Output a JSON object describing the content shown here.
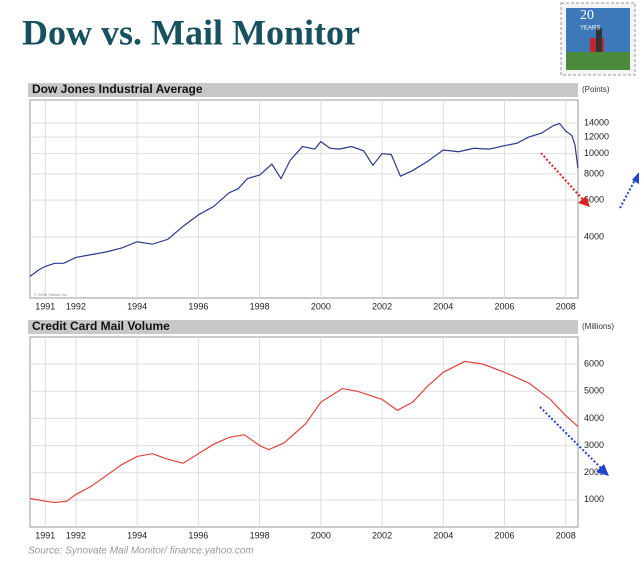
{
  "title": "Dow vs. Mail Monitor",
  "badge": {
    "number": "20",
    "label": "YEARS"
  },
  "source": "Source: Synovate Mail Monitor/ finance.yahoo.com",
  "chart_data": [
    {
      "type": "line",
      "title": "Dow Jones Industrial Average",
      "unit_label": "(Points)",
      "annotation": "© 2006 Yahoo! Inc.",
      "log_scale": true,
      "grid": true,
      "color": "#2b3a8c",
      "x": [
        1990.5,
        1990.8,
        1991,
        1991.3,
        1991.6,
        1992,
        1992.5,
        1993,
        1993.5,
        1994,
        1994.5,
        1995,
        1995.5,
        1996,
        1996.5,
        1997,
        1997.3,
        1997.6,
        1998,
        1998.4,
        1998.7,
        1999,
        1999.4,
        1999.8,
        2000,
        2000.3,
        2000.6,
        2001,
        2001.4,
        2001.7,
        2002,
        2002.3,
        2002.6,
        2003,
        2003.5,
        2004,
        2004.5,
        2005,
        2005.5,
        2006,
        2006.4,
        2006.8,
        2007.2,
        2007.6,
        2007.8,
        2008,
        2008.2,
        2008.3,
        2008.4
      ],
      "values": [
        2600,
        2800,
        2900,
        3000,
        3000,
        3200,
        3300,
        3400,
        3550,
        3800,
        3700,
        3900,
        4500,
        5100,
        5600,
        6500,
        6800,
        7600,
        7900,
        8900,
        7600,
        9300,
        10800,
        10500,
        11400,
        10600,
        10500,
        10800,
        10300,
        8800,
        10000,
        9900,
        7800,
        8300,
        9200,
        10400,
        10200,
        10600,
        10500,
        10900,
        11200,
        12000,
        12500,
        13600,
        13900,
        12800,
        12200,
        11000,
        8500
      ],
      "xlim": [
        1990.5,
        2008.4
      ],
      "xticks": [
        1991,
        1992,
        1994,
        1996,
        1998,
        2000,
        2002,
        2004,
        2006,
        2008
      ],
      "ylim": [
        2050,
        18000
      ],
      "yticks": [
        4000,
        6000,
        8000,
        10000,
        12000,
        14000
      ]
    },
    {
      "type": "line",
      "title": "Credit Card Mail Volume",
      "unit_label": "(Millions)",
      "log_scale": false,
      "grid": true,
      "color": "#e0443c",
      "x": [
        1990.5,
        1991,
        1991.3,
        1991.7,
        1992,
        1992.5,
        1993,
        1993.5,
        1994,
        1994.5,
        1995,
        1995.5,
        1996,
        1996.5,
        1997,
        1997.5,
        1998,
        1998.3,
        1998.8,
        1999.5,
        2000,
        2000.7,
        2001.2,
        2002,
        2002.5,
        2003,
        2003.5,
        2004,
        2004.7,
        2005.3,
        2006,
        2006.8,
        2007.5,
        2008,
        2008.4
      ],
      "values": [
        1050,
        950,
        900,
        950,
        1200,
        1500,
        1900,
        2300,
        2600,
        2700,
        2500,
        2350,
        2700,
        3050,
        3300,
        3400,
        3000,
        2850,
        3100,
        3800,
        4600,
        5100,
        5000,
        4700,
        4300,
        4600,
        5200,
        5700,
        6100,
        6000,
        5700,
        5300,
        4700,
        4100,
        3700
      ],
      "xlim": [
        1990.5,
        2008.4
      ],
      "xticks": [
        1991,
        1992,
        1994,
        1996,
        1998,
        2000,
        2002,
        2004,
        2006,
        2008
      ],
      "ylim": [
        0,
        7000
      ],
      "yticks": [
        1000,
        2000,
        3000,
        4000,
        5000,
        6000
      ]
    }
  ]
}
